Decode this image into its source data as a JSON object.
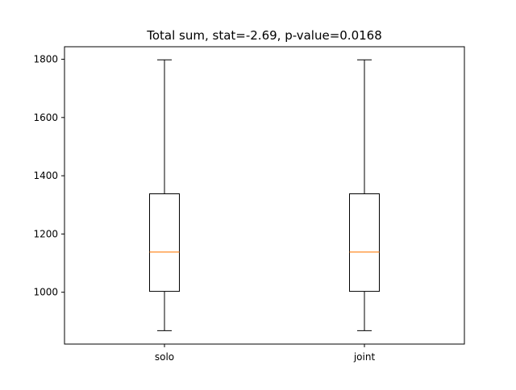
{
  "chart_data": {
    "type": "box",
    "title": "Total sum, stat=-2.69, p-value=0.0168",
    "xlabel": "",
    "ylabel": "",
    "categories": [
      "solo",
      "joint"
    ],
    "boxes": [
      {
        "name": "solo",
        "whisker_low": 868,
        "q1": 1003,
        "median": 1138,
        "q3": 1338,
        "whisker_high": 1798
      },
      {
        "name": "joint",
        "whisker_low": 868,
        "q1": 1003,
        "median": 1138,
        "q3": 1338,
        "whisker_high": 1798
      }
    ],
    "yticks": [
      1000,
      1200,
      1400,
      1600,
      1800
    ],
    "ylim": [
      822,
      1843
    ],
    "grid": false,
    "colors": {
      "box": "#000000",
      "median": "#ff7f0e",
      "background": "#ffffff"
    }
  }
}
